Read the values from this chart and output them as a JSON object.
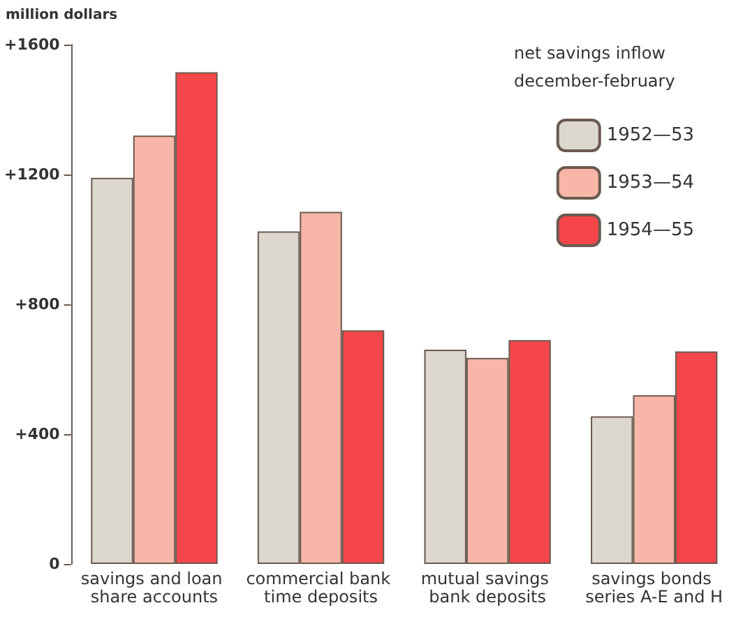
{
  "chart_data": {
    "type": "bar",
    "ylabel": "million dollars",
    "legend_title": "net savings inflow december-february",
    "categories": [
      "savings and loan share accounts",
      "commercial bank time deposits",
      "mutual savings bank deposits",
      "savings bonds series A-E and H"
    ],
    "series": [
      {
        "name": "1952—53",
        "color": "#dcd8cf",
        "values": [
          1190,
          1025,
          660,
          455
        ]
      },
      {
        "name": "1953—54",
        "color": "#f8b6a8",
        "values": [
          1320,
          1085,
          635,
          520
        ]
      },
      {
        "name": "1954—55",
        "color": "#f5474a",
        "values": [
          1515,
          720,
          690,
          655
        ]
      }
    ],
    "ylim": [
      0,
      1600
    ],
    "yticks": [
      0,
      {
        "value": 400,
        "label": "+400"
      },
      {
        "value": 800,
        "label": "+800"
      },
      {
        "value": 1200,
        "label": "+1200"
      },
      {
        "value": 1600,
        "label": "+1600"
      }
    ],
    "grid": false,
    "legend": "top right"
  }
}
